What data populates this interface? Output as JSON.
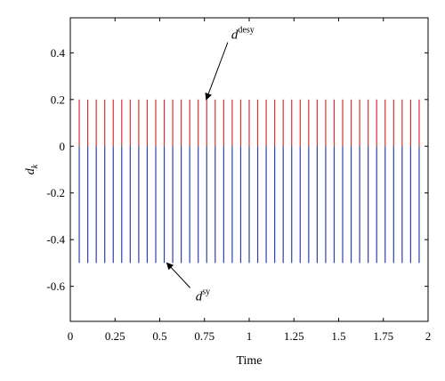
{
  "chart_data": {
    "type": "stem",
    "xlabel": "Time",
    "ylabel_base": "d",
    "ylabel_sub": "k",
    "xlim": [
      0,
      2
    ],
    "ylim": [
      -0.75,
      0.55
    ],
    "xticks": [
      0,
      0.25,
      0.5,
      0.75,
      1,
      1.25,
      1.5,
      1.75,
      2
    ],
    "xtick_labels": [
      "0",
      "0.25",
      "0.5",
      "0.75",
      "1",
      "1.25",
      "1.5",
      "1.75",
      "2"
    ],
    "yticks": [
      0.4,
      0.2,
      0,
      -0.2,
      -0.4,
      -0.6
    ],
    "ytick_labels": [
      "0.4",
      "0.2",
      "0",
      "-0.2",
      "-0.4",
      "-0.6"
    ],
    "grid": false,
    "x_start": 0.05,
    "x_step": 0.0475,
    "count": 41,
    "series": [
      {
        "value": 0.2,
        "color": "#d9312b"
      },
      {
        "value": -0.5,
        "color": "#2f3fae"
      }
    ],
    "annotations": [
      {
        "base": "d",
        "sup": "desy",
        "x": 0.9,
        "y": 0.46,
        "arrow_to": [
          0.76,
          0.2
        ]
      },
      {
        "base": "d",
        "sup": "sy",
        "x": 0.7,
        "y": -0.66,
        "arrow_to": [
          0.54,
          -0.5
        ]
      }
    ]
  }
}
